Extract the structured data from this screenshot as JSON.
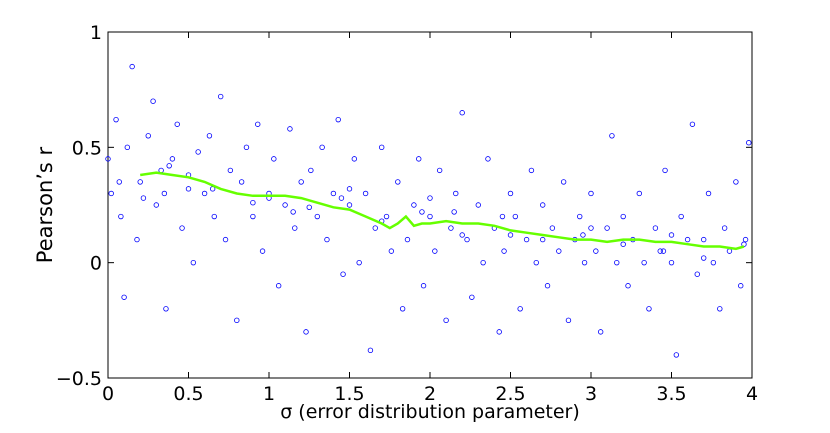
{
  "chart_data": {
    "type": "scatter",
    "xlabel": "σ (error distribution parameter)",
    "ylabel": "Pearson’s r",
    "xlim": [
      0,
      4
    ],
    "ylim": [
      -0.5,
      1
    ],
    "xticks": [
      0,
      0.5,
      1,
      1.5,
      2,
      2.5,
      3,
      3.5,
      4
    ],
    "yticks": [
      {
        "value": -0.5,
        "label": "−0.5"
      },
      0,
      0.5,
      1
    ],
    "grid": false,
    "series": [
      {
        "type": "scatter",
        "color": "#0000ff",
        "x": [
          0.0,
          0.02,
          0.05,
          0.08,
          0.1,
          0.12,
          0.15,
          0.18,
          0.2,
          0.25,
          0.28,
          0.3,
          0.33,
          0.36,
          0.4,
          0.43,
          0.46,
          0.5,
          0.53,
          0.56,
          0.6,
          0.63,
          0.66,
          0.7,
          0.73,
          0.76,
          0.8,
          0.83,
          0.86,
          0.9,
          0.93,
          0.96,
          1.0,
          1.03,
          1.06,
          1.1,
          1.13,
          1.16,
          1.2,
          1.23,
          1.26,
          1.3,
          1.33,
          1.36,
          1.4,
          1.43,
          1.46,
          1.5,
          1.53,
          1.56,
          1.6,
          1.63,
          1.66,
          1.7,
          1.73,
          1.76,
          1.8,
          1.83,
          1.86,
          1.9,
          1.93,
          1.96,
          2.0,
          2.03,
          2.06,
          2.1,
          2.13,
          2.16,
          2.2,
          2.23,
          2.26,
          2.3,
          2.33,
          2.36,
          2.4,
          2.43,
          2.46,
          2.5,
          2.53,
          2.56,
          2.6,
          2.63,
          2.66,
          2.7,
          2.73,
          2.76,
          2.8,
          2.83,
          2.86,
          2.9,
          2.93,
          2.96,
          3.0,
          3.03,
          3.06,
          3.1,
          3.13,
          3.16,
          3.2,
          3.23,
          3.26,
          3.3,
          3.33,
          3.36,
          3.4,
          3.43,
          3.46,
          3.5,
          3.53,
          3.56,
          3.6,
          3.63,
          3.66,
          3.7,
          3.73,
          3.76,
          3.8,
          3.83,
          3.86,
          3.9,
          3.93,
          3.96,
          3.98,
          0.07,
          0.22,
          0.38,
          0.65,
          0.9,
          1.15,
          1.45,
          1.7,
          1.95,
          2.2,
          2.45,
          2.7,
          2.95,
          3.2,
          3.45,
          3.7,
          3.95,
          0.5,
          1.0,
          1.5,
          2.0,
          2.5,
          3.0,
          3.5,
          0.35,
          1.25,
          2.15
        ],
        "values": [
          0.45,
          0.3,
          0.62,
          0.2,
          -0.15,
          0.5,
          0.85,
          0.1,
          0.35,
          0.55,
          0.7,
          0.25,
          0.4,
          -0.2,
          0.45,
          0.6,
          0.15,
          0.38,
          0.0,
          0.48,
          0.3,
          0.55,
          0.2,
          0.72,
          0.1,
          0.4,
          -0.25,
          0.35,
          0.5,
          0.2,
          0.6,
          0.05,
          0.3,
          0.45,
          -0.1,
          0.25,
          0.58,
          0.15,
          0.35,
          -0.3,
          0.4,
          0.2,
          0.5,
          0.1,
          0.3,
          0.62,
          -0.05,
          0.25,
          0.45,
          0.0,
          0.3,
          -0.38,
          0.15,
          0.5,
          0.2,
          0.05,
          0.35,
          -0.2,
          0.1,
          0.25,
          0.45,
          -0.1,
          0.2,
          0.05,
          0.4,
          -0.25,
          0.15,
          0.3,
          0.65,
          0.1,
          -0.15,
          0.25,
          0.0,
          0.45,
          0.15,
          -0.3,
          0.05,
          0.3,
          0.2,
          -0.2,
          0.1,
          0.4,
          0.0,
          0.25,
          -0.1,
          0.15,
          0.05,
          0.35,
          -0.25,
          0.1,
          0.2,
          0.0,
          0.3,
          0.05,
          -0.3,
          0.15,
          0.55,
          0.0,
          0.2,
          -0.1,
          0.1,
          0.3,
          0.0,
          -0.2,
          0.15,
          0.05,
          0.4,
          0.0,
          -0.4,
          0.2,
          0.1,
          0.6,
          -0.05,
          0.1,
          0.3,
          0.0,
          -0.2,
          0.15,
          0.05,
          0.35,
          -0.1,
          0.1,
          0.52,
          0.35,
          0.28,
          0.42,
          0.32,
          0.26,
          0.22,
          0.28,
          0.18,
          0.22,
          0.12,
          0.2,
          0.1,
          0.12,
          0.08,
          0.05,
          0.02,
          0.08,
          0.32,
          0.28,
          0.32,
          0.28,
          0.12,
          0.15,
          0.12,
          0.3,
          0.24,
          0.22
        ]
      },
      {
        "type": "line",
        "color": "#66ff00",
        "x": [
          0.2,
          0.3,
          0.4,
          0.5,
          0.6,
          0.7,
          0.8,
          0.9,
          1.0,
          1.1,
          1.2,
          1.3,
          1.4,
          1.5,
          1.6,
          1.7,
          1.75,
          1.8,
          1.85,
          1.9,
          1.95,
          2.0,
          2.1,
          2.2,
          2.3,
          2.4,
          2.5,
          2.6,
          2.7,
          2.8,
          2.9,
          3.0,
          3.1,
          3.2,
          3.3,
          3.4,
          3.5,
          3.6,
          3.7,
          3.8,
          3.9,
          3.95
        ],
        "values": [
          0.38,
          0.39,
          0.38,
          0.37,
          0.35,
          0.32,
          0.3,
          0.29,
          0.29,
          0.29,
          0.28,
          0.26,
          0.24,
          0.23,
          0.2,
          0.17,
          0.15,
          0.17,
          0.2,
          0.16,
          0.17,
          0.17,
          0.18,
          0.17,
          0.17,
          0.16,
          0.14,
          0.13,
          0.12,
          0.11,
          0.1,
          0.1,
          0.09,
          0.1,
          0.1,
          0.09,
          0.09,
          0.08,
          0.07,
          0.07,
          0.06,
          0.07
        ]
      }
    ]
  }
}
